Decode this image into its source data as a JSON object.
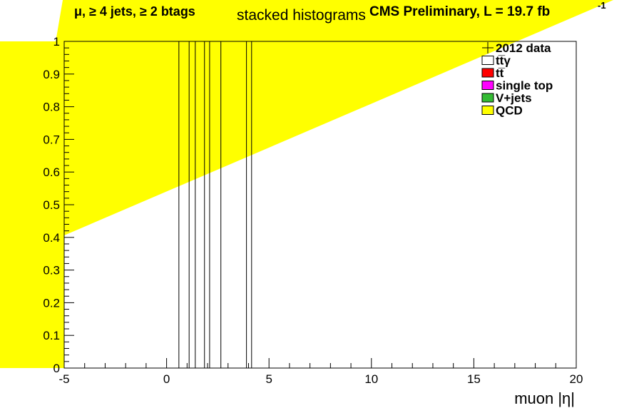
{
  "chart_data": {
    "type": "bar",
    "title": "stacked histograms",
    "channel_label": "μ, ≥ 4 jets, ≥ 2 btags",
    "experiment_label": "CMS Preliminary, L = 19.7 fb",
    "lumi_exponent": "-1",
    "xlabel": "muon |η|",
    "ylabel": "",
    "xlim": [
      -5,
      20
    ],
    "ylim": [
      0,
      1
    ],
    "x_ticks": [
      "-5",
      "0",
      "5",
      "10",
      "15",
      "20"
    ],
    "y_ticks": [
      "0",
      "0.1",
      "0.2",
      "0.3",
      "0.4",
      "0.5",
      "0.6",
      "0.7",
      "0.8",
      "0.9",
      "1"
    ],
    "x_tick_values": [
      -5,
      0,
      5,
      10,
      15,
      20
    ],
    "y_tick_values": [
      0,
      0.1,
      0.2,
      0.3,
      0.4,
      0.5,
      0.6,
      0.7,
      0.8,
      0.9,
      1
    ],
    "vertical_lines_x": [
      0.6,
      1.1,
      1.4,
      1.85,
      2.1,
      2.65,
      3.9,
      4.15
    ],
    "legend": [
      {
        "label": "2012 data",
        "marker": "cross",
        "color": "#000000"
      },
      {
        "label": "tt̅γ",
        "marker": "box",
        "color": "#ffffff"
      },
      {
        "label": "tt̅",
        "marker": "box",
        "color": "#ff0000"
      },
      {
        "label": "single top",
        "marker": "box",
        "color": "#ff00ff"
      },
      {
        "label": "V+jets",
        "marker": "box",
        "color": "#33bb33"
      },
      {
        "label": "QCD",
        "marker": "box",
        "color": "#ffff00"
      }
    ],
    "legend_placement": "top-right",
    "fill_color": "#ffff00",
    "grid": false
  }
}
